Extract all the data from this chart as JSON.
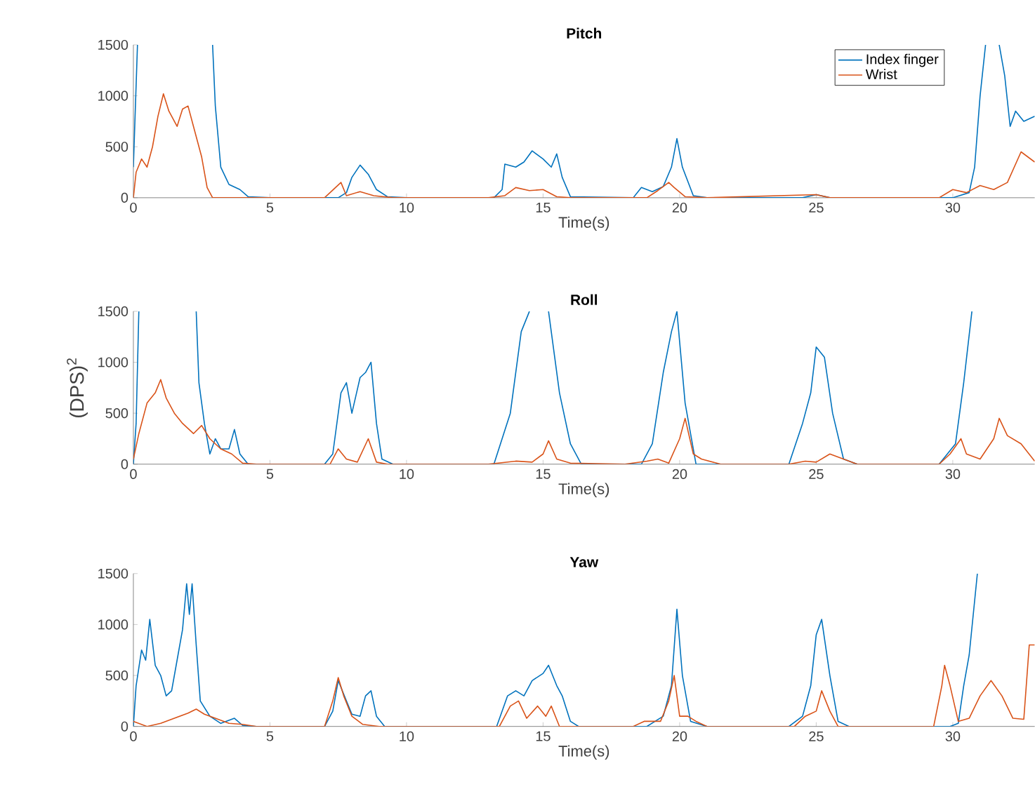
{
  "chart_data": [
    {
      "type": "line",
      "title": "Pitch",
      "xlabel": "Time(s)",
      "xlim": [
        0,
        33
      ],
      "ylim": [
        0,
        1500
      ],
      "xticks": [
        0,
        5,
        10,
        15,
        20,
        25,
        30
      ],
      "yticks": [
        0,
        500,
        1000,
        1500
      ],
      "legend": "top right",
      "series": [
        {
          "name": "Index finger",
          "color": "#0072bd",
          "x": [
            0,
            0.15,
            1.5,
            2.9,
            3.0,
            3.2,
            3.5,
            3.9,
            4.2,
            5,
            7.5,
            7.8,
            8,
            8.3,
            8.6,
            8.9,
            9.3,
            10,
            13.2,
            13.5,
            13.6,
            14,
            14.3,
            14.6,
            15,
            15.3,
            15.5,
            15.7,
            16,
            18.3,
            18.6,
            19,
            19.4,
            19.7,
            19.9,
            20.1,
            20.5,
            21,
            24.5,
            25,
            25.5,
            30,
            30.6,
            30.8,
            31,
            31.2,
            31.5,
            31.7,
            31.9,
            32.1,
            32.3,
            32.6,
            33
          ],
          "values": [
            300,
            1500,
            null,
            1500,
            900,
            300,
            130,
            80,
            10,
            0,
            0,
            50,
            200,
            320,
            230,
            80,
            10,
            0,
            0,
            80,
            330,
            300,
            350,
            460,
            380,
            300,
            430,
            200,
            10,
            0,
            100,
            60,
            110,
            300,
            580,
            300,
            20,
            0,
            0,
            30,
            0,
            0,
            50,
            300,
            1000,
            1500,
            null,
            1500,
            1200,
            700,
            850,
            750,
            800
          ]
        },
        {
          "name": "Wrist",
          "color": "#d95319",
          "x": [
            0,
            0.1,
            0.3,
            0.5,
            0.7,
            0.9,
            1.1,
            1.3,
            1.6,
            1.8,
            2.0,
            2.2,
            2.5,
            2.7,
            2.9,
            7,
            7.4,
            7.6,
            7.8,
            8.3,
            8.8,
            9.5,
            13,
            13.6,
            14,
            14.5,
            15,
            15.5,
            16,
            18.8,
            19.2,
            19.6,
            19.8,
            20.2,
            21,
            25,
            25.5,
            29.5,
            30,
            30.5,
            31,
            31.5,
            32,
            32.5,
            33
          ],
          "values": [
            0,
            250,
            380,
            300,
            500,
            800,
            1020,
            850,
            700,
            870,
            900,
            700,
            400,
            100,
            0,
            0,
            100,
            150,
            20,
            60,
            20,
            0,
            0,
            20,
            100,
            70,
            80,
            10,
            0,
            0,
            70,
            150,
            100,
            10,
            0,
            30,
            0,
            0,
            80,
            50,
            120,
            80,
            150,
            450,
            350
          ]
        }
      ]
    },
    {
      "type": "line",
      "title": "Roll",
      "xlabel": "Time(s)",
      "ylabel": "(DPS)$^{2}$",
      "xlim": [
        0,
        33
      ],
      "ylim": [
        0,
        1500
      ],
      "xticks": [
        0,
        5,
        10,
        15,
        20,
        25,
        30
      ],
      "yticks": [
        0,
        500,
        1000,
        1500
      ],
      "series": [
        {
          "color": "#0072bd",
          "x": [
            0,
            0.1,
            0.2,
            1.2,
            2.3,
            2.4,
            2.6,
            2.8,
            3,
            3.2,
            3.5,
            3.7,
            3.9,
            4.2,
            7,
            7.3,
            7.6,
            7.8,
            8,
            8.3,
            8.5,
            8.7,
            8.9,
            9.1,
            9.5,
            13.2,
            13.8,
            14.2,
            14.5,
            14.8,
            15.2,
            15.6,
            16,
            16.4,
            18.6,
            19,
            19.4,
            19.7,
            19.9,
            20.2,
            20.6,
            24,
            24.5,
            24.8,
            25.0,
            25.3,
            25.6,
            26,
            26.5,
            29.5,
            30.1,
            30.4,
            30.7
          ],
          "values": [
            0,
            400,
            1500,
            null,
            1500,
            800,
            400,
            100,
            250,
            150,
            150,
            340,
            100,
            0,
            0,
            100,
            700,
            800,
            500,
            850,
            900,
            1000,
            400,
            50,
            0,
            0,
            500,
            1300,
            1500,
            null,
            1500,
            700,
            200,
            0,
            0,
            200,
            900,
            1300,
            1500,
            600,
            0,
            0,
            400,
            700,
            1150,
            1050,
            500,
            50,
            0,
            0,
            200,
            800,
            1500
          ]
        },
        {
          "color": "#d95319",
          "x": [
            0,
            0.2,
            0.5,
            0.8,
            1,
            1.2,
            1.5,
            1.8,
            2.2,
            2.5,
            2.8,
            3.2,
            3.6,
            4,
            4.5,
            7.2,
            7.5,
            7.8,
            8.2,
            8.6,
            8.9,
            9.3,
            13,
            14,
            14.6,
            15,
            15.2,
            15.5,
            16,
            18,
            18.8,
            19.2,
            19.6,
            20.0,
            20.2,
            20.5,
            20.8,
            21.5,
            24,
            24.6,
            25,
            25.5,
            26,
            26.5,
            29.5,
            29.9,
            30.3,
            30.5,
            31,
            31.5,
            31.7,
            32,
            32.5,
            33
          ],
          "values": [
            50,
            300,
            600,
            700,
            830,
            650,
            500,
            400,
            300,
            380,
            250,
            150,
            100,
            10,
            0,
            0,
            150,
            50,
            20,
            250,
            20,
            0,
            0,
            30,
            20,
            100,
            230,
            50,
            10,
            0,
            30,
            50,
            10,
            250,
            450,
            100,
            50,
            0,
            0,
            30,
            20,
            100,
            50,
            0,
            0,
            100,
            250,
            100,
            50,
            250,
            450,
            280,
            200,
            30
          ]
        }
      ]
    },
    {
      "type": "line",
      "title": "Yaw",
      "xlabel": "Time(s)",
      "xlim": [
        0,
        33
      ],
      "ylim": [
        0,
        1500
      ],
      "xticks": [
        0,
        5,
        10,
        15,
        20,
        25,
        30
      ],
      "yticks": [
        0,
        500,
        1000,
        1500
      ],
      "series": [
        {
          "color": "#0072bd",
          "x": [
            0,
            0.1,
            0.3,
            0.45,
            0.6,
            0.8,
            1.0,
            1.2,
            1.4,
            1.6,
            1.8,
            1.95,
            2.05,
            2.15,
            2.3,
            2.45,
            2.8,
            3.2,
            3.7,
            4.0,
            4.5,
            7.0,
            7.3,
            7.5,
            7.8,
            8.0,
            8.3,
            8.5,
            8.7,
            8.9,
            9.2,
            13.3,
            13.7,
            14,
            14.3,
            14.6,
            15,
            15.2,
            15.5,
            15.7,
            16,
            16.3,
            18.8,
            19.4,
            19.7,
            19.9,
            20.1,
            20.4,
            21,
            24,
            24.5,
            24.8,
            25.0,
            25.2,
            25.5,
            25.8,
            26.2,
            29.9,
            30.2,
            30.4,
            30.6,
            30.9
          ],
          "values": [
            0,
            400,
            750,
            650,
            1050,
            600,
            500,
            300,
            350,
            650,
            950,
            1400,
            1100,
            1400,
            800,
            250,
            100,
            30,
            80,
            10,
            0,
            0,
            150,
            450,
            250,
            120,
            100,
            300,
            350,
            100,
            0,
            0,
            300,
            350,
            300,
            450,
            520,
            600,
            400,
            300,
            50,
            0,
            0,
            100,
            400,
            1150,
            500,
            50,
            0,
            0,
            100,
            400,
            900,
            1050,
            500,
            50,
            0,
            0,
            30,
            400,
            700,
            1500
          ]
        },
        {
          "color": "#d95319",
          "x": [
            0,
            0.5,
            1,
            1.5,
            2,
            2.3,
            2.6,
            3,
            3.5,
            4,
            4.5,
            7.0,
            7.3,
            7.5,
            7.7,
            8.0,
            8.4,
            9,
            13.4,
            13.8,
            14.1,
            14.4,
            14.8,
            15.1,
            15.3,
            15.6,
            18.3,
            18.7,
            19.3,
            19.6,
            19.8,
            20,
            20.3,
            20.6,
            21,
            24.2,
            24.6,
            25,
            25.2,
            25.5,
            25.8,
            29.3,
            29.6,
            29.7,
            29.9,
            30.2,
            30.6,
            31,
            31.4,
            31.8,
            32.2,
            32.6,
            32.8,
            33
          ],
          "values": [
            50,
            0,
            30,
            80,
            130,
            170,
            120,
            80,
            30,
            20,
            0,
            0,
            250,
            480,
            300,
            100,
            20,
            0,
            0,
            200,
            250,
            80,
            200,
            100,
            200,
            0,
            0,
            50,
            50,
            250,
            500,
            100,
            100,
            50,
            0,
            0,
            100,
            150,
            350,
            150,
            0,
            0,
            400,
            600,
            400,
            50,
            80,
            300,
            450,
            300,
            80,
            70,
            800,
            800
          ]
        }
      ]
    }
  ]
}
